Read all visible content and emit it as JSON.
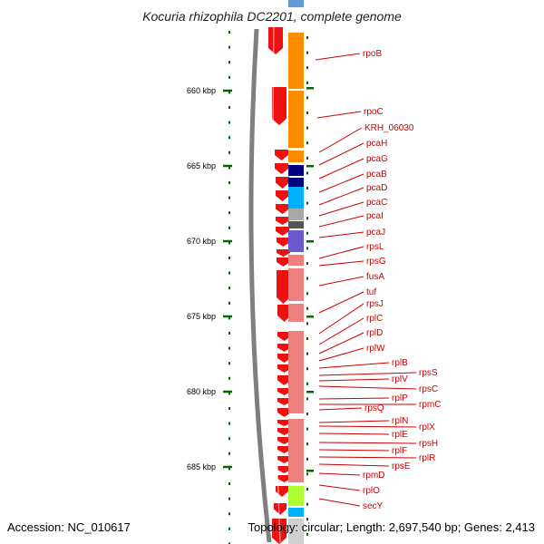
{
  "title": "Kocuria rhizophila DC2201, complete genome",
  "accession": "Accession: NC_010617",
  "summary": "Topology: circular; Length: 2,697,540 bp; Genes: 2,413",
  "colors": {
    "backbone": "#7f7f7f",
    "strand": "#ee1111",
    "label": "#cc0000",
    "tick": "#006600",
    "orange": "#ff8c00",
    "navy": "#000080",
    "sky": "#00b0ff",
    "grey": "#a8a8a8",
    "darkgrey": "#555555",
    "purple": "#6a5acd",
    "salmon": "#f08080",
    "lime": "#adff2f"
  },
  "ticks": [
    "660 kbp",
    "665 kbp",
    "670 kbp",
    "675 kbp",
    "680 kbp",
    "685 kbp"
  ],
  "gene_labels": [
    "rpoB",
    "rpoC",
    "KRH_06030",
    "pcaH",
    "pcaG",
    "pcaB",
    "pcaD",
    "pcaC",
    "pcaI",
    "pcaJ",
    "rpsL",
    "rpsG",
    "fusA",
    "tuf",
    "rpsJ",
    "rplC",
    "rplD",
    "rplW",
    "rplB",
    "rpsS",
    "rplV",
    "rpsC",
    "rplP",
    "rpmC",
    "rpsQ",
    "rplN",
    "rplX",
    "rplE",
    "rpsH",
    "rplF",
    "rplR",
    "rpsE",
    "rpmD",
    "rplO",
    "secY"
  ]
}
